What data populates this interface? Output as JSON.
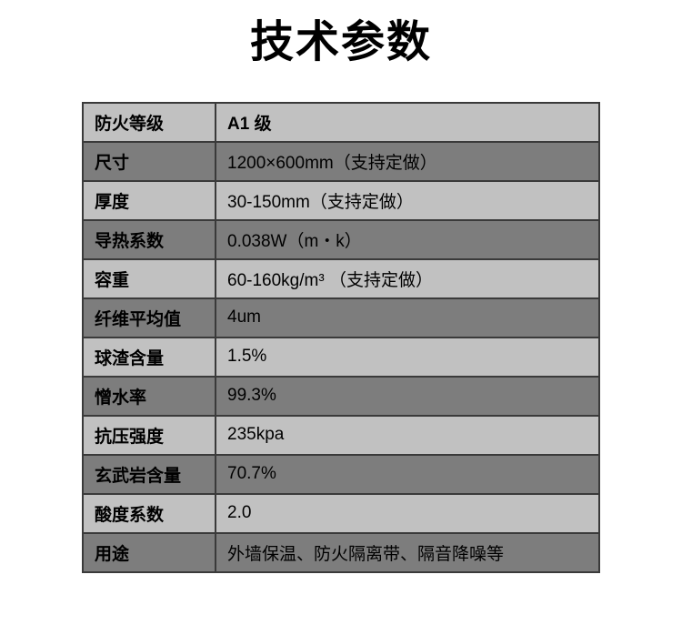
{
  "title": "技术参数",
  "table": {
    "rows": [
      {
        "label": "防火等级",
        "value": "A1 级"
      },
      {
        "label": "尺寸",
        "value": "1200×600mm（支持定做）"
      },
      {
        "label": "厚度",
        "value": "30-150mm（支持定做）"
      },
      {
        "label": "导热系数",
        "value": "0.038W（m・k）"
      },
      {
        "label": "容重",
        "value": "60-160kg/m³ （支持定做）"
      },
      {
        "label": "纤维平均值",
        "value": "4um"
      },
      {
        "label": "球渣含量",
        "value": "1.5%"
      },
      {
        "label": "憎水率",
        "value": "99.3%"
      },
      {
        "label": "抗压强度",
        "value": "235kpa"
      },
      {
        "label": "玄武岩含量",
        "value": "70.7%"
      },
      {
        "label": "酸度系数",
        "value": "2.0"
      },
      {
        "label": "用途",
        "value": "外墙保温、防火隔离带、隔音降噪等"
      }
    ]
  },
  "colors": {
    "row_light": "#c1c1c1",
    "row_dark": "#7d7d7d",
    "border": "#3a3a3a",
    "text": "#000000",
    "background": "#ffffff"
  }
}
